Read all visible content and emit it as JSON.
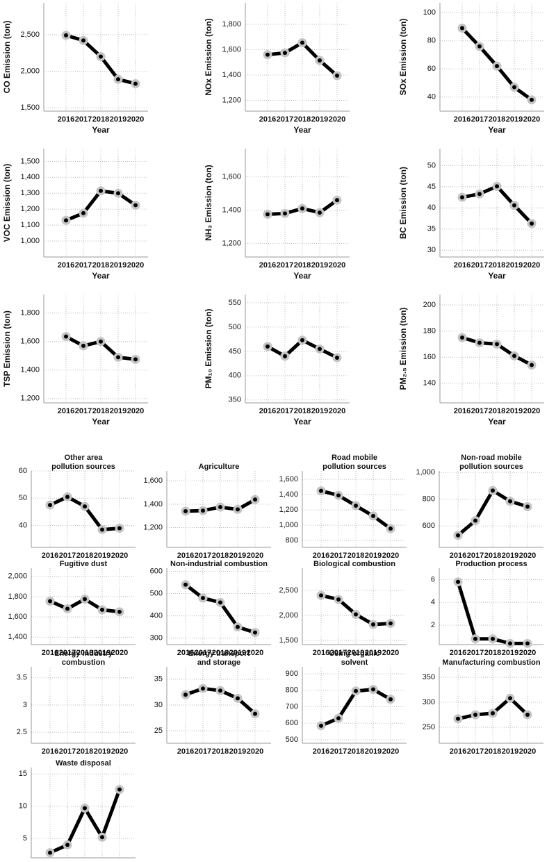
{
  "chart_data": [
    {
      "type": "line",
      "ylabel": "CO Emission (ton)",
      "xlabel": "Year",
      "categories": [
        "2016",
        "2017",
        "2018",
        "2019",
        "2020"
      ],
      "values": [
        2490,
        2420,
        2200,
        1890,
        1830
      ],
      "ylim": [
        1455,
        2935
      ],
      "yticks": [
        {
          "value": 1500,
          "label": "1,500"
        },
        {
          "value": 2000,
          "label": "2,000"
        },
        {
          "value": 2500,
          "label": "2,500"
        }
      ],
      "grid": true,
      "color": "#000000",
      "marker_color": "#c4c4c4"
    },
    {
      "type": "line",
      "ylabel": "NOx Emission (ton)",
      "xlabel": "Year",
      "categories": [
        "2016",
        "2017",
        "2018",
        "2019",
        "2020"
      ],
      "values": [
        1560,
        1575,
        1655,
        1515,
        1395
      ],
      "ylim": [
        1115,
        1970
      ],
      "yticks": [
        {
          "value": 1200,
          "label": "1,200"
        },
        {
          "value": 1400,
          "label": "1,400"
        },
        {
          "value": 1600,
          "label": "1,600"
        },
        {
          "value": 1800,
          "label": "1,800"
        }
      ],
      "grid": true,
      "color": "#000000",
      "marker_color": "#c4c4c4"
    },
    {
      "type": "line",
      "ylabel": "SOx Emission (ton)",
      "xlabel": "Year",
      "categories": [
        "2016",
        "2017",
        "2018",
        "2019",
        "2020"
      ],
      "values": [
        89,
        76,
        62,
        47,
        38
      ],
      "ylim": [
        30,
        107
      ],
      "yticks": [
        40,
        60,
        80,
        100
      ],
      "grid": true,
      "color": "#000000",
      "marker_color": "#c4c4c4"
    },
    {
      "type": "line",
      "ylabel": "VOC Emission (ton)",
      "xlabel": "Year",
      "categories": [
        "2016",
        "2017",
        "2018",
        "2019",
        "2020"
      ],
      "values": [
        1130,
        1175,
        1315,
        1300,
        1225
      ],
      "ylim": [
        900,
        1580
      ],
      "yticks": [
        {
          "value": 1000,
          "label": "1,000"
        },
        {
          "value": 1100,
          "label": "1,100"
        },
        {
          "value": 1200,
          "label": "1,200"
        },
        {
          "value": 1300,
          "label": "1,300"
        },
        {
          "value": 1400,
          "label": "1,400"
        },
        {
          "value": 1500,
          "label": "1,500"
        }
      ],
      "grid": true,
      "color": "#000000",
      "marker_color": "#c4c4c4"
    },
    {
      "type": "line",
      "ylabel": "NH₃ Emission (ton)",
      "xlabel": "Year",
      "categories": [
        "2016",
        "2017",
        "2018",
        "2019",
        "2020"
      ],
      "values": [
        1375,
        1380,
        1410,
        1385,
        1460
      ],
      "ylim": [
        1118,
        1770
      ],
      "yticks": [
        {
          "value": 1200,
          "label": "1,200"
        },
        {
          "value": 1400,
          "label": "1,400"
        },
        {
          "value": 1600,
          "label": "1,600"
        }
      ],
      "grid": true,
      "color": "#000000",
      "marker_color": "#c4c4c4"
    },
    {
      "type": "line",
      "ylabel": "BC Emission (ton)",
      "xlabel": "Year",
      "categories": [
        "2016",
        "2017",
        "2018",
        "2019",
        "2020"
      ],
      "values": [
        42.5,
        43.3,
        45.1,
        40.6,
        36.3
      ],
      "ylim": [
        28.4,
        54
      ],
      "yticks": [
        30,
        35,
        40,
        45,
        50
      ],
      "grid": true,
      "color": "#000000",
      "marker_color": "#c4c4c4"
    },
    {
      "type": "line",
      "ylabel": "TSP Emission (ton)",
      "xlabel": "Year",
      "categories": [
        "2016",
        "2017",
        "2018",
        "2019",
        "2020"
      ],
      "values": [
        1635,
        1570,
        1600,
        1490,
        1475
      ],
      "ylim": [
        1170,
        1930
      ],
      "yticks": [
        {
          "value": 1200,
          "label": "1,200"
        },
        {
          "value": 1400,
          "label": "1,400"
        },
        {
          "value": 1600,
          "label": "1,600"
        },
        {
          "value": 1800,
          "label": "1,800"
        }
      ],
      "grid": true,
      "color": "#000000",
      "marker_color": "#c4c4c4"
    },
    {
      "type": "line",
      "ylabel": "PM₁₀ Emission (ton)",
      "xlabel": "Year",
      "categories": [
        "2016",
        "2017",
        "2018",
        "2019",
        "2020"
      ],
      "values": [
        460,
        440,
        473,
        455,
        437
      ],
      "ylim": [
        344,
        567
      ],
      "yticks": [
        350,
        400,
        450,
        500,
        550
      ],
      "grid": true,
      "color": "#000000",
      "marker_color": "#c4c4c4"
    },
    {
      "type": "line",
      "ylabel": "PM₂.₅ Emission (ton)",
      "xlabel": "Year",
      "categories": [
        "2016",
        "2017",
        "2018",
        "2019",
        "2020"
      ],
      "values": [
        175,
        171,
        170,
        161,
        154
      ],
      "ylim": [
        125,
        208
      ],
      "yticks": [
        140,
        160,
        180,
        200
      ],
      "grid": true,
      "color": "#000000",
      "marker_color": "#c4c4c4"
    },
    {
      "type": "line",
      "title": [
        "Other area",
        "pollution sources"
      ],
      "categories": [
        "2016",
        "2017",
        "2018",
        "2019",
        "2020"
      ],
      "values": [
        47.5,
        50.5,
        47,
        38.5,
        39
      ],
      "ylim": [
        32,
        60
      ],
      "yticks": [
        40,
        50,
        60
      ],
      "grid": true,
      "color": "#000000",
      "marker_color": "#c4c4c4"
    },
    {
      "type": "line",
      "title": [
        "Agriculture"
      ],
      "categories": [
        "2016",
        "2017",
        "2018",
        "2019",
        "2020"
      ],
      "values": [
        1340,
        1345,
        1375,
        1355,
        1440
      ],
      "ylim": [
        1030,
        1685
      ],
      "yticks": [
        {
          "value": 1200,
          "label": "1,200"
        },
        {
          "value": 1400,
          "label": "1,400"
        },
        {
          "value": 1600,
          "label": "1,600"
        }
      ],
      "grid": true,
      "color": "#000000",
      "marker_color": "#c4c4c4"
    },
    {
      "type": "line",
      "title": [
        "Road mobile",
        "pollution sources"
      ],
      "categories": [
        "2016",
        "2017",
        "2018",
        "2019",
        "2020"
      ],
      "values": [
        1450,
        1390,
        1255,
        1120,
        955
      ],
      "ylim": [
        710,
        1710
      ],
      "yticks": [
        800,
        {
          "value": 1000,
          "label": "1,000"
        },
        {
          "value": 1200,
          "label": "1,200"
        },
        {
          "value": 1400,
          "label": "1,400"
        },
        {
          "value": 1600,
          "label": "1,600"
        }
      ],
      "grid": true,
      "color": "#000000",
      "marker_color": "#c4c4c4"
    },
    {
      "type": "line",
      "title": [
        "Non-road mobile",
        "pollution sources"
      ],
      "categories": [
        "2016",
        "2017",
        "2018",
        "2019",
        "2020"
      ],
      "values": [
        530,
        640,
        865,
        785,
        745
      ],
      "ylim": [
        440,
        1012
      ],
      "yticks": [
        600,
        800,
        {
          "value": 1000,
          "label": "1,000"
        }
      ],
      "grid": true,
      "color": "#000000",
      "marker_color": "#c4c4c4"
    },
    {
      "type": "line",
      "title": [
        "Fugitive dust"
      ],
      "categories": [
        "2016",
        "2017",
        "2018",
        "2019",
        "2020"
      ],
      "values": [
        1755,
        1680,
        1775,
        1670,
        1650
      ],
      "ylim": [
        1327,
        2080
      ],
      "yticks": [
        {
          "value": 1400,
          "label": "1,400"
        },
        {
          "value": 1600,
          "label": "1,600"
        },
        {
          "value": 1800,
          "label": "1,800"
        },
        {
          "value": 2000,
          "label": "2,000"
        }
      ],
      "grid": true,
      "color": "#000000",
      "marker_color": "#c4c4c4"
    },
    {
      "type": "line",
      "title": [
        "Non-industrial combustion"
      ],
      "categories": [
        "2016",
        "2017",
        "2018",
        "2019",
        "2020"
      ],
      "values": [
        540,
        480,
        460,
        350,
        325
      ],
      "ylim": [
        271,
        614
      ],
      "yticks": [
        300,
        400,
        500,
        600
      ],
      "grid": true,
      "color": "#000000",
      "marker_color": "#c4c4c4"
    },
    {
      "type": "line",
      "title": [
        "Biological combustion"
      ],
      "categories": [
        "2016",
        "2017",
        "2018",
        "2019",
        "2020"
      ],
      "values": [
        2400,
        2320,
        2020,
        1820,
        1840
      ],
      "ylim": [
        1417,
        2944
      ],
      "yticks": [
        {
          "value": 1500,
          "label": "1,500"
        },
        {
          "value": 2000,
          "label": "2,000"
        },
        {
          "value": 2500,
          "label": "2,500"
        }
      ],
      "grid": true,
      "color": "#000000",
      "marker_color": "#c4c4c4"
    },
    {
      "type": "line",
      "title": [
        "Production process"
      ],
      "categories": [
        "2016",
        "2017",
        "2018",
        "2019",
        "2020"
      ],
      "values": [
        5.8,
        0.8,
        0.8,
        0.4,
        0.4
      ],
      "ylim": [
        0.3,
        7
      ],
      "yticks": [
        2,
        4,
        6
      ],
      "grid": true,
      "color": "#000000",
      "marker_color": "#c4c4c4"
    },
    {
      "type": "line",
      "title": [
        "Energy industry",
        "combustion"
      ],
      "categories": [
        "2016",
        "2017",
        "2018",
        "2019",
        "2020"
      ],
      "values": [
        null,
        null,
        null,
        null,
        null
      ],
      "ylim": [
        2.3,
        3.7
      ],
      "yticks": [
        2.5,
        3,
        3.5
      ],
      "grid": true,
      "color": "#000000",
      "marker_color": "#c4c4c4"
    },
    {
      "type": "line",
      "title": [
        "Energy transport",
        "and storage"
      ],
      "categories": [
        "2016",
        "2017",
        "2018",
        "2019",
        "2020"
      ],
      "values": [
        32,
        33.2,
        32.8,
        31.3,
        28.3
      ],
      "ylim": [
        22.6,
        37.4
      ],
      "yticks": [
        25,
        30,
        35
      ],
      "grid": true,
      "color": "#000000",
      "marker_color": "#c4c4c4"
    },
    {
      "type": "line",
      "title": [
        "Using organic",
        "solvent"
      ],
      "categories": [
        "2016",
        "2017",
        "2018",
        "2019",
        "2020"
      ],
      "values": [
        585,
        630,
        795,
        805,
        745
      ],
      "ylim": [
        479,
        942
      ],
      "yticks": [
        500,
        600,
        700,
        800,
        900
      ],
      "grid": true,
      "color": "#000000",
      "marker_color": "#c4c4c4"
    },
    {
      "type": "line",
      "title": [
        "Manufacturing combustion"
      ],
      "categories": [
        "2016",
        "2017",
        "2018",
        "2019",
        "2020"
      ],
      "values": [
        267,
        275,
        278,
        308,
        275
      ],
      "ylim": [
        218,
        371
      ],
      "yticks": [
        250,
        300,
        350
      ],
      "grid": true,
      "color": "#000000",
      "marker_color": "#c4c4c4"
    },
    {
      "type": "line",
      "title": [
        "Waste disposal"
      ],
      "categories": [
        "2016",
        "2017",
        "2018",
        "2019",
        "2020"
      ],
      "values": [
        2.8,
        4,
        9.7,
        5.2,
        12.6
      ],
      "ylim": [
        2,
        16
      ],
      "yticks": [
        5,
        10,
        15
      ],
      "grid": true,
      "color": "#000000",
      "marker_color": "#c4c4c4"
    }
  ]
}
